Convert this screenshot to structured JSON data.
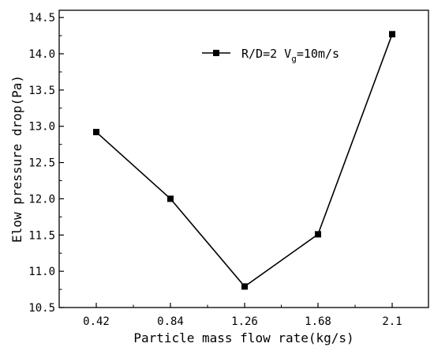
{
  "chart_data": {
    "type": "line",
    "xlabel": "Particle mass flow rate(kg/s)",
    "ylabel": "Elow pressure drop(Pa)",
    "categories": [
      "0.42",
      "0.84",
      "1.26",
      "1.68",
      "2.1"
    ],
    "series": [
      {
        "name": "R/D=2 V_g=10m/s",
        "legend": {
          "prefix": "R/D=2 V",
          "subscript": "g",
          "suffix": "=10m/s"
        },
        "values": [
          12.92,
          12.0,
          10.79,
          11.51,
          14.27
        ],
        "marker": "square",
        "color": "#000000"
      }
    ],
    "ylim": [
      10.5,
      14.6
    ],
    "yticks": [
      "10.5",
      "11.0",
      "11.5",
      "12.0",
      "12.5",
      "13.0",
      "13.5",
      "14.0",
      "14.5"
    ],
    "grid": false,
    "legend_position": "top-right"
  }
}
